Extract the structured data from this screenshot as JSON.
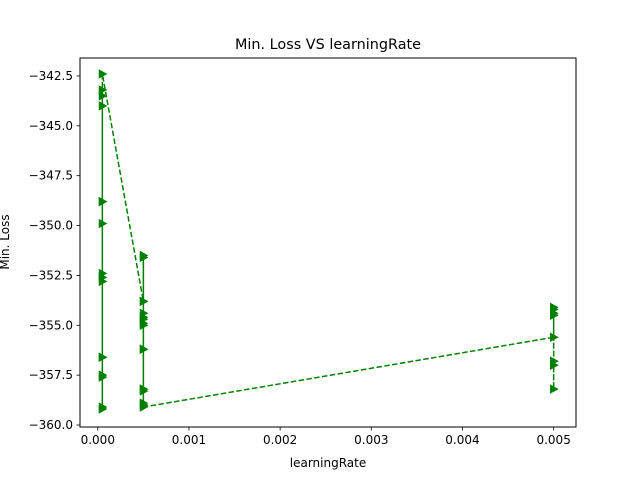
{
  "chart_data": {
    "type": "line",
    "title": "Min. Loss VS learningRate",
    "xlabel": "learningRate",
    "ylabel": "Min. Loss",
    "xlim": [
      -0.000195,
      0.005245
    ],
    "ylim": [
      -360.1,
      -341.6
    ],
    "xticks": [
      0.0,
      0.001,
      0.002,
      0.003,
      0.004,
      0.005
    ],
    "xtick_labels": [
      "0.000",
      "0.001",
      "0.002",
      "0.003",
      "0.004",
      "0.005"
    ],
    "yticks": [
      -360.0,
      -357.5,
      -355.0,
      -352.5,
      -350.0,
      -347.5,
      -345.0,
      -342.5
    ],
    "ytick_labels": [
      "−360.0",
      "−357.5",
      "−355.0",
      "−352.5",
      "−350.0",
      "−347.5",
      "−345.0",
      "−342.5"
    ],
    "grid": false,
    "series": [
      {
        "color": "#008000",
        "linestyle": "dashed",
        "marker": "triangle-right",
        "x": [
          5e-05,
          5e-05,
          5e-05,
          5e-05,
          5e-05,
          5e-05,
          5e-05,
          5e-05,
          5e-05,
          5e-05,
          5e-05,
          5e-05,
          5e-05,
          5e-05,
          5e-05,
          5e-05,
          0.0005,
          0.0005,
          0.0005,
          0.0005,
          0.0005,
          0.0005,
          0.0005,
          0.0005,
          0.0005,
          0.0005,
          0.0005,
          0.0005,
          0.0005,
          0.0005,
          0.0005,
          0.0005,
          0.0005,
          0.005,
          0.005,
          0.005,
          0.005,
          0.005,
          0.005,
          0.005,
          0.005,
          0.005,
          0.005,
          0.005
        ],
        "y": [
          -359.2,
          -357.6,
          -356.6,
          -352.8,
          -352.4,
          -349.9,
          -348.8,
          -344.0,
          -343.5,
          -343.2,
          -348.8,
          -352.6,
          -356.6,
          -357.5,
          -359.1,
          -342.4,
          -353.8,
          -351.5,
          -354.4,
          -354.9,
          -356.2,
          -358.2,
          -358.9,
          -354.7,
          -353.8,
          -355.0,
          -356.2,
          -358.3,
          -359.0,
          -351.6,
          -354.6,
          -358.2,
          -359.1,
          -355.6,
          -354.1,
          -354.4,
          -354.5,
          -356.8,
          -357.0,
          -358.2,
          -357.0,
          -356.8,
          -354.2,
          -354.4
        ]
      }
    ]
  }
}
